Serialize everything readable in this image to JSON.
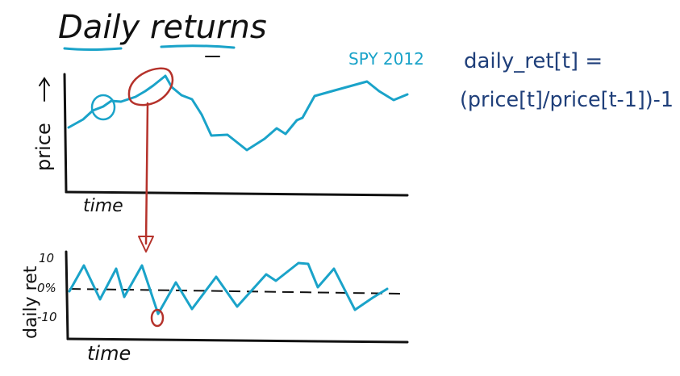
{
  "title": "Daily returns",
  "formula": {
    "line1": "daily_ret[t] =",
    "line2": "(price[t]/price[t-1])-1"
  },
  "top_chart": {
    "ylabel": "price",
    "xlabel": "time",
    "series_label": "SPY 2012"
  },
  "bottom_chart": {
    "ylabel": "daily ret",
    "xlabel": "time",
    "ticks": [
      "10",
      "0%",
      "-10"
    ]
  },
  "colors": {
    "ink": "#111111",
    "series": "#1aa3c9",
    "formula": "#1f3f7a",
    "annotation": "#b5322b"
  }
}
